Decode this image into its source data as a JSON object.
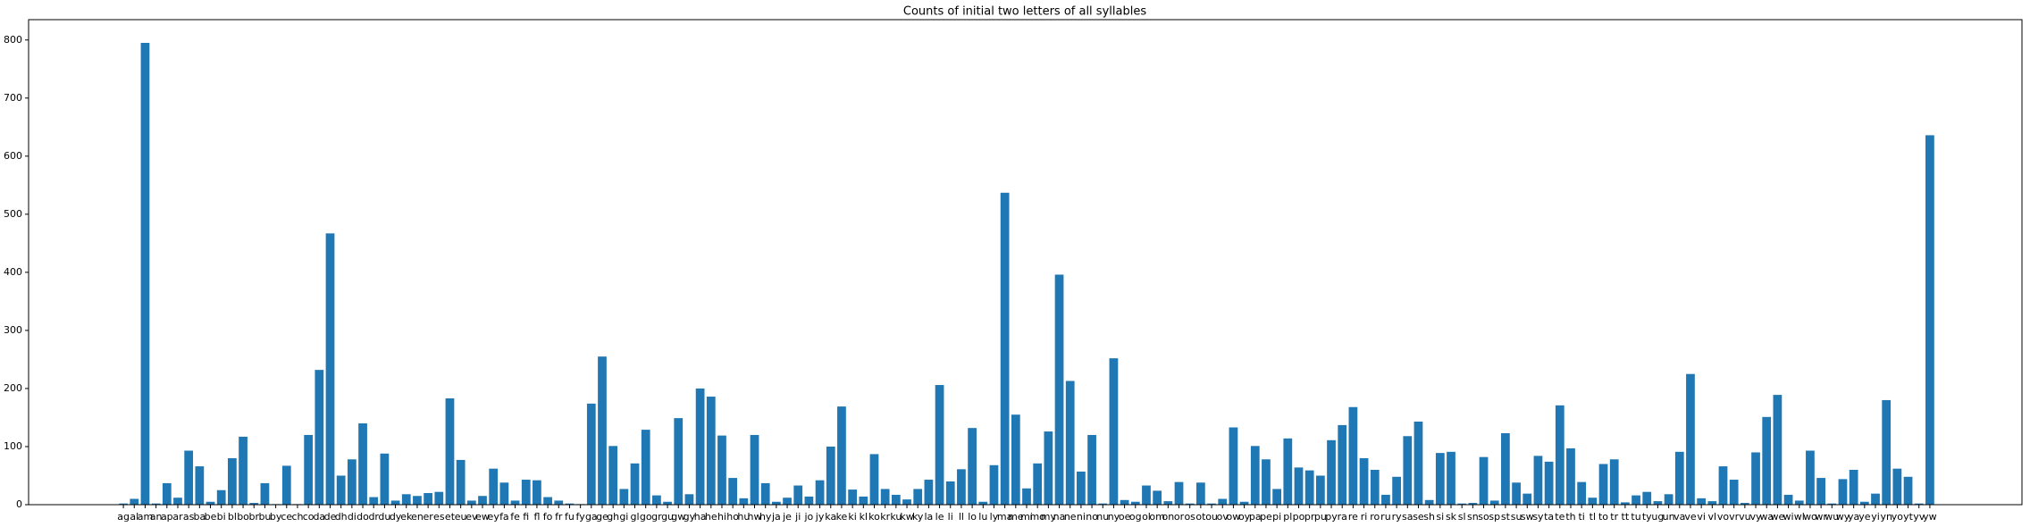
{
  "chart_data": {
    "type": "bar",
    "title": "Counts of initial two letters of all syllables",
    "categories": [
      "ag",
      "al",
      "am",
      "an",
      "ap",
      "ar",
      "as",
      "ba",
      "be",
      "bi",
      "bl",
      "bo",
      "br",
      "bu",
      "by",
      "ce",
      "ch",
      "co",
      "da",
      "de",
      "dh",
      "di",
      "do",
      "dr",
      "du",
      "dy",
      "ek",
      "en",
      "er",
      "es",
      "et",
      "eu",
      "ev",
      "ew",
      "ey",
      "fa",
      "fe",
      "fi",
      "fl",
      "fo",
      "fr",
      "fu",
      "fy",
      "ga",
      "ge",
      "gh",
      "gi",
      "gl",
      "go",
      "gr",
      "gu",
      "gw",
      "gy",
      "ha",
      "he",
      "hi",
      "ho",
      "hu",
      "hw",
      "hy",
      "ja",
      "je",
      "ji",
      "jo",
      "jy",
      "ka",
      "ke",
      "ki",
      "kl",
      "ko",
      "kr",
      "ku",
      "kw",
      "ky",
      "la",
      "le",
      "li",
      "ll",
      "lo",
      "lu",
      "ly",
      "ma",
      "me",
      "mi",
      "mo",
      "my",
      "na",
      "ne",
      "ni",
      "no",
      "nu",
      "ny",
      "oe",
      "og",
      "ol",
      "om",
      "on",
      "or",
      "os",
      "ot",
      "ou",
      "ov",
      "ow",
      "oy",
      "pa",
      "pe",
      "pi",
      "pl",
      "po",
      "pr",
      "pu",
      "py",
      "ra",
      "re",
      "ri",
      "ro",
      "ru",
      "ry",
      "sa",
      "se",
      "sh",
      "si",
      "sk",
      "sl",
      "sn",
      "so",
      "sp",
      "st",
      "su",
      "sw",
      "sy",
      "ta",
      "te",
      "th",
      "ti",
      "tl",
      "to",
      "tr",
      "tt",
      "tu",
      "ty",
      "ug",
      "un",
      "va",
      "ve",
      "vi",
      "vl",
      "vo",
      "vr",
      "vu",
      "vy",
      "wa",
      "we",
      "wi",
      "wl",
      "wo",
      "wr",
      "wu",
      "wy",
      "ya",
      "ye",
      "yi",
      "yn",
      "yo",
      "yt",
      "yv",
      "yw"
    ],
    "values": [
      2,
      10,
      795,
      2,
      37,
      12,
      93,
      66,
      5,
      25,
      80,
      117,
      3,
      37,
      1,
      67,
      1,
      120,
      232,
      467,
      50,
      78,
      140,
      13,
      88,
      7,
      18,
      15,
      20,
      22,
      183,
      77,
      7,
      15,
      62,
      38,
      7,
      43,
      42,
      13,
      7,
      2,
      1,
      174,
      255,
      101,
      27,
      71,
      129,
      16,
      5,
      149,
      18,
      200,
      186,
      119,
      46,
      11,
      120,
      37,
      5,
      12,
      33,
      14,
      42,
      100,
      169,
      26,
      14,
      87,
      27,
      17,
      9,
      27,
      43,
      206,
      40,
      61,
      132,
      5,
      68,
      537,
      155,
      28,
      71,
      126,
      396,
      213,
      57,
      120,
      2,
      252,
      8,
      5,
      33,
      24,
      6,
      39,
      2,
      38,
      2,
      10,
      133,
      5,
      101,
      78,
      27,
      114,
      64,
      59,
      50,
      111,
      137,
      168,
      80,
      60,
      17,
      48,
      118,
      143,
      8,
      89,
      91,
      2,
      3,
      82,
      7,
      123,
      38,
      19,
      84,
      74,
      171,
      97,
      39,
      12,
      70,
      78,
      4,
      16,
      22,
      6,
      18,
      91,
      225,
      11,
      6,
      66,
      43,
      3,
      90,
      151,
      189,
      17,
      7,
      93,
      46,
      2,
      44,
      60,
      5,
      19,
      180,
      62,
      48,
      2,
      636
    ],
    "color": "#1f77b4",
    "ylim": [
      0,
      835
    ],
    "yticks": [
      0,
      100,
      200,
      300,
      400,
      500,
      600,
      700,
      800
    ]
  }
}
